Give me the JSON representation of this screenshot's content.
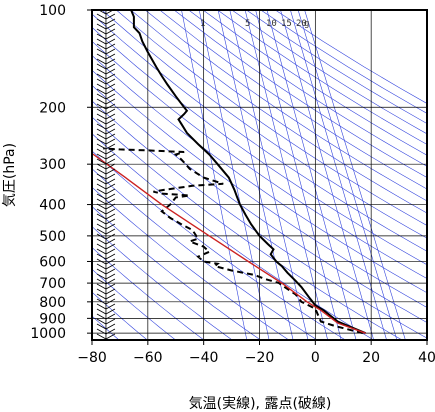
{
  "chart_data": {
    "type": "line",
    "title": "",
    "xlabel": "気温(実線), 露点(破線)",
    "ylabel": "気圧(hPa)",
    "x_axis": {
      "range": [
        -80,
        40
      ],
      "ticks": [
        -80,
        -60,
        -40,
        -20,
        0,
        20,
        40
      ],
      "tick_labels": [
        "−80",
        "−60",
        "−40",
        "−20",
        "0",
        "20",
        "40"
      ]
    },
    "y_axis": {
      "scale": "log",
      "range": [
        1050,
        100
      ],
      "ticks": [
        100,
        200,
        300,
        400,
        500,
        600,
        700,
        800,
        900,
        1000
      ],
      "tick_labels": [
        "100",
        "200",
        "300",
        "400",
        "500",
        "600",
        "700",
        "800",
        "900",
        "1000"
      ]
    },
    "grid": true,
    "mixing_ratio_labels": [
      "1",
      "5",
      "10",
      "15",
      "20",
      "g"
    ],
    "mixing_ratio_values_gkg": [
      1,
      5,
      10,
      15,
      20
    ],
    "series": [
      {
        "style": "solid",
        "color": "#000000",
        "points": [
          [
            18,
            1000
          ],
          [
            8,
            920
          ],
          [
            3,
            850
          ],
          [
            0,
            820
          ],
          [
            -2,
            780
          ],
          [
            -5,
            720
          ],
          [
            -7,
            690
          ],
          [
            -10,
            650
          ],
          [
            -12,
            620
          ],
          [
            -14,
            600
          ],
          [
            -16,
            570
          ],
          [
            -15,
            550
          ],
          [
            -17,
            530
          ],
          [
            -20,
            500
          ],
          [
            -23,
            460
          ],
          [
            -25,
            430
          ],
          [
            -27,
            400
          ],
          [
            -28,
            380
          ],
          [
            -29,
            360
          ],
          [
            -31,
            330
          ],
          [
            -35,
            300
          ],
          [
            -38,
            280
          ],
          [
            -42,
            260
          ],
          [
            -46,
            240
          ],
          [
            -48,
            225
          ],
          [
            -49,
            218
          ],
          [
            -47,
            210
          ],
          [
            -46,
            205
          ],
          [
            -47,
            200
          ],
          [
            -50,
            185
          ],
          [
            -53,
            170
          ],
          [
            -55,
            160
          ],
          [
            -57,
            150
          ],
          [
            -60,
            135
          ],
          [
            -62,
            125
          ],
          [
            -63,
            118
          ],
          [
            -65,
            113
          ],
          [
            -65,
            105
          ],
          [
            -66,
            100
          ]
        ]
      },
      {
        "style": "dashed",
        "color": "#000000",
        "points": [
          [
            17,
            1000
          ],
          [
            7,
            950
          ],
          [
            2,
            920
          ],
          [
            1,
            880
          ],
          [
            0,
            840
          ],
          [
            -5,
            800
          ],
          [
            -7,
            760
          ],
          [
            -11,
            720
          ],
          [
            -13,
            700
          ],
          [
            -18,
            680
          ],
          [
            -22,
            660
          ],
          [
            -30,
            640
          ],
          [
            -36,
            620
          ],
          [
            -35,
            610
          ],
          [
            -40,
            600
          ],
          [
            -42,
            580
          ],
          [
            -38,
            560
          ],
          [
            -40,
            540
          ],
          [
            -45,
            520
          ],
          [
            -42,
            510
          ],
          [
            -44,
            480
          ],
          [
            -48,
            460
          ],
          [
            -52,
            440
          ],
          [
            -55,
            420
          ],
          [
            -52,
            400
          ],
          [
            -50,
            380
          ],
          [
            -45,
            375
          ],
          [
            -55,
            370
          ],
          [
            -58,
            365
          ],
          [
            -54,
            360
          ],
          [
            -44,
            350
          ],
          [
            -33,
            345
          ],
          [
            -40,
            330
          ],
          [
            -45,
            310
          ],
          [
            -48,
            290
          ],
          [
            -50,
            280
          ],
          [
            -47,
            275
          ],
          [
            -60,
            272
          ],
          [
            -70,
            270
          ],
          [
            -76,
            268
          ]
        ]
      },
      {
        "style": "solid",
        "color": "#cc2222",
        "points": [
          [
            18,
            1000
          ],
          [
            8,
            930
          ],
          [
            2,
            850
          ],
          [
            -3,
            800
          ],
          [
            -12,
            700
          ],
          [
            -24,
            600
          ],
          [
            -38,
            500
          ],
          [
            -55,
            400
          ],
          [
            -68,
            330
          ],
          [
            -82,
            270
          ]
        ]
      }
    ],
    "wind_barbs_x": -75
  }
}
